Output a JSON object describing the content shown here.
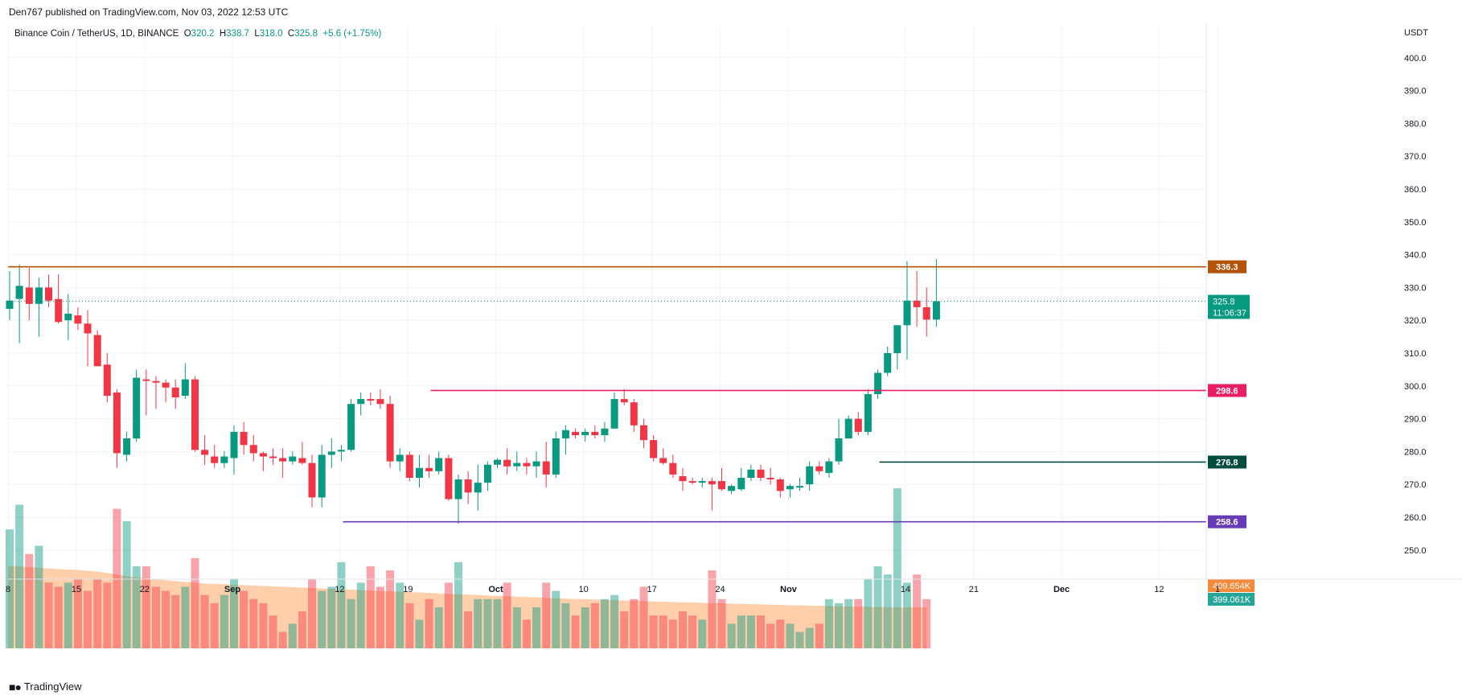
{
  "header": {
    "published_text": "Den767 published on TradingView.com, Nov 03, 2022 12:53 UTC"
  },
  "legend": {
    "symbol": "Binance Coin / TetherUS, 1D, BINANCE",
    "o_label": "O",
    "o_value": "320.2",
    "h_label": "H",
    "h_value": "338.7",
    "l_label": "L",
    "l_value": "318.0",
    "c_label": "C",
    "c_value": "325.8",
    "change": "+5.6 (+1.75%)"
  },
  "footer": {
    "brand": "TradingView"
  },
  "colors": {
    "up": "#089981",
    "down": "#f23645",
    "grid": "#f0f3fa",
    "ma_fill": "#ffcca8",
    "level_resistance": "#b45309",
    "level_mid": "#e91e63",
    "level_support": "#004d40",
    "level_volume": "#673ab7"
  },
  "chart_data": {
    "type": "candlestick",
    "currency": "USDT",
    "ylim": [
      247,
      410
    ],
    "y_ticks": [
      "250.0",
      "260.0",
      "270.0",
      "280.0",
      "290.0",
      "300.0",
      "310.0",
      "320.0",
      "330.0",
      "340.0",
      "350.0",
      "360.0",
      "370.0",
      "380.0",
      "390.0",
      "400.0"
    ],
    "x_ticks": [
      "8",
      "15",
      "22",
      "Sep",
      "12",
      "19",
      "Oct",
      "10",
      "17",
      "24",
      "Nov",
      "14",
      "21",
      "Dec",
      "12",
      "1"
    ],
    "grid": true,
    "candles": [
      {
        "o": 323.5,
        "h": 335,
        "l": 320,
        "c": 326.0
      },
      {
        "o": 326.5,
        "h": 337,
        "l": 313,
        "c": 330.5
      },
      {
        "o": 330.0,
        "h": 336,
        "l": 320,
        "c": 325.0
      },
      {
        "o": 325.0,
        "h": 333,
        "l": 315,
        "c": 330.0
      },
      {
        "o": 330.0,
        "h": 334,
        "l": 324,
        "c": 326.0
      },
      {
        "o": 326.5,
        "h": 334,
        "l": 319,
        "c": 319.5
      },
      {
        "o": 320.0,
        "h": 328,
        "l": 314,
        "c": 322.0
      },
      {
        "o": 321.5,
        "h": 324,
        "l": 317,
        "c": 319.0
      },
      {
        "o": 319.0,
        "h": 323,
        "l": 306,
        "c": 316.0
      },
      {
        "o": 315.5,
        "h": 317,
        "l": 306,
        "c": 306.0
      },
      {
        "o": 306.5,
        "h": 310,
        "l": 295,
        "c": 297.0
      },
      {
        "o": 298.0,
        "h": 299,
        "l": 275,
        "c": 279.5
      },
      {
        "o": 279.0,
        "h": 286,
        "l": 277,
        "c": 284.0
      },
      {
        "o": 284.0,
        "h": 305,
        "l": 283,
        "c": 302.5
      },
      {
        "o": 302.0,
        "h": 305,
        "l": 291,
        "c": 301.5
      },
      {
        "o": 301.5,
        "h": 303,
        "l": 293,
        "c": 301.0
      },
      {
        "o": 301.0,
        "h": 302,
        "l": 295,
        "c": 299.5
      },
      {
        "o": 299.5,
        "h": 302,
        "l": 293,
        "c": 296.5
      },
      {
        "o": 297.0,
        "h": 307,
        "l": 296,
        "c": 302.0
      },
      {
        "o": 302.0,
        "h": 303,
        "l": 280,
        "c": 280.5
      },
      {
        "o": 280.5,
        "h": 285,
        "l": 276,
        "c": 279.0
      },
      {
        "o": 278.5,
        "h": 282,
        "l": 275,
        "c": 276.5
      },
      {
        "o": 276.5,
        "h": 280,
        "l": 275,
        "c": 278.5
      },
      {
        "o": 278.0,
        "h": 288,
        "l": 273,
        "c": 286.0
      },
      {
        "o": 286.0,
        "h": 289,
        "l": 279,
        "c": 282.0
      },
      {
        "o": 282.0,
        "h": 285,
        "l": 277,
        "c": 279.5
      },
      {
        "o": 279.5,
        "h": 280,
        "l": 274,
        "c": 278.5
      },
      {
        "o": 278.5,
        "h": 281,
        "l": 276,
        "c": 278.0
      },
      {
        "o": 278.0,
        "h": 281,
        "l": 272,
        "c": 277.0
      },
      {
        "o": 277.0,
        "h": 280,
        "l": 276,
        "c": 278.5
      },
      {
        "o": 278.0,
        "h": 283,
        "l": 276,
        "c": 276.5
      },
      {
        "o": 276.5,
        "h": 279,
        "l": 263,
        "c": 266.0
      },
      {
        "o": 266.0,
        "h": 282,
        "l": 263,
        "c": 279.0
      },
      {
        "o": 279.0,
        "h": 284,
        "l": 275,
        "c": 280.0
      },
      {
        "o": 280.0,
        "h": 282,
        "l": 277,
        "c": 280.5
      },
      {
        "o": 280.5,
        "h": 296,
        "l": 280,
        "c": 294.5
      },
      {
        "o": 294.5,
        "h": 298,
        "l": 291,
        "c": 296.0
      },
      {
        "o": 296.0,
        "h": 298,
        "l": 294,
        "c": 295.5
      },
      {
        "o": 296.0,
        "h": 299,
        "l": 293,
        "c": 294.5
      },
      {
        "o": 294.5,
        "h": 297,
        "l": 275,
        "c": 277.0
      },
      {
        "o": 277.0,
        "h": 281,
        "l": 274,
        "c": 279.0
      },
      {
        "o": 279.0,
        "h": 280,
        "l": 271,
        "c": 272.0
      },
      {
        "o": 272.0,
        "h": 279,
        "l": 269,
        "c": 275.0
      },
      {
        "o": 275.0,
        "h": 279,
        "l": 272,
        "c": 274.0
      },
      {
        "o": 274.0,
        "h": 280,
        "l": 273,
        "c": 278.0
      },
      {
        "o": 278.0,
        "h": 279,
        "l": 265,
        "c": 265.5
      },
      {
        "o": 265.5,
        "h": 273,
        "l": 258,
        "c": 271.5
      },
      {
        "o": 271.5,
        "h": 274,
        "l": 264,
        "c": 267.5
      },
      {
        "o": 267.5,
        "h": 276,
        "l": 262,
        "c": 270.5
      },
      {
        "o": 270.5,
        "h": 277,
        "l": 268,
        "c": 276.0
      },
      {
        "o": 276.0,
        "h": 278,
        "l": 275,
        "c": 277.5
      },
      {
        "o": 277.5,
        "h": 281,
        "l": 273,
        "c": 275.5
      },
      {
        "o": 275.5,
        "h": 280,
        "l": 274,
        "c": 276.5
      },
      {
        "o": 276.5,
        "h": 278,
        "l": 273,
        "c": 275.5
      },
      {
        "o": 275.5,
        "h": 280,
        "l": 272,
        "c": 277.0
      },
      {
        "o": 277.0,
        "h": 283,
        "l": 269,
        "c": 273.0
      },
      {
        "o": 273.0,
        "h": 286,
        "l": 272,
        "c": 284.0
      },
      {
        "o": 284.0,
        "h": 288,
        "l": 279,
        "c": 286.5
      },
      {
        "o": 286.0,
        "h": 287,
        "l": 284,
        "c": 285.0
      },
      {
        "o": 285.0,
        "h": 287,
        "l": 283,
        "c": 286.0
      },
      {
        "o": 286.0,
        "h": 288,
        "l": 284,
        "c": 285.0
      },
      {
        "o": 285.0,
        "h": 289,
        "l": 283,
        "c": 287.0
      },
      {
        "o": 287.0,
        "h": 298,
        "l": 287,
        "c": 296.0
      },
      {
        "o": 296.0,
        "h": 299,
        "l": 294,
        "c": 295.0
      },
      {
        "o": 295.0,
        "h": 296,
        "l": 286,
        "c": 288.0
      },
      {
        "o": 288.0,
        "h": 290,
        "l": 281,
        "c": 283.5
      },
      {
        "o": 283.5,
        "h": 285,
        "l": 277,
        "c": 278.0
      },
      {
        "o": 278.0,
        "h": 281,
        "l": 276,
        "c": 276.5
      },
      {
        "o": 276.5,
        "h": 279,
        "l": 272,
        "c": 273.0
      },
      {
        "o": 272.5,
        "h": 275,
        "l": 268,
        "c": 271.0
      },
      {
        "o": 271.0,
        "h": 272,
        "l": 270,
        "c": 270.5
      },
      {
        "o": 270.5,
        "h": 272,
        "l": 269,
        "c": 271.0
      },
      {
        "o": 271.0,
        "h": 272,
        "l": 262,
        "c": 270.0
      },
      {
        "o": 271.0,
        "h": 275,
        "l": 268,
        "c": 268.5
      },
      {
        "o": 268.0,
        "h": 270,
        "l": 267,
        "c": 269.5
      },
      {
        "o": 268.5,
        "h": 275,
        "l": 268,
        "c": 272.0
      },
      {
        "o": 272.0,
        "h": 276,
        "l": 271,
        "c": 274.5
      },
      {
        "o": 274.5,
        "h": 276,
        "l": 271,
        "c": 272.0
      },
      {
        "o": 272.0,
        "h": 275,
        "l": 270,
        "c": 271.5
      },
      {
        "o": 271.5,
        "h": 272,
        "l": 266,
        "c": 268.0
      },
      {
        "o": 268.5,
        "h": 270,
        "l": 266,
        "c": 269.5
      },
      {
        "o": 269.0,
        "h": 272,
        "l": 268,
        "c": 269.5
      },
      {
        "o": 270.0,
        "h": 277,
        "l": 268,
        "c": 275.5
      },
      {
        "o": 275.5,
        "h": 277,
        "l": 273,
        "c": 274.0
      },
      {
        "o": 273.5,
        "h": 278,
        "l": 272,
        "c": 277.0
      },
      {
        "o": 277.0,
        "h": 290,
        "l": 276,
        "c": 284.0
      },
      {
        "o": 284.0,
        "h": 291,
        "l": 284,
        "c": 290.0
      },
      {
        "o": 290.0,
        "h": 292,
        "l": 285,
        "c": 286.0
      },
      {
        "o": 286.0,
        "h": 299,
        "l": 285,
        "c": 297.5
      },
      {
        "o": 297.5,
        "h": 305,
        "l": 296,
        "c": 304.0
      },
      {
        "o": 304.0,
        "h": 312,
        "l": 303,
        "c": 310.0
      },
      {
        "o": 310.0,
        "h": 318,
        "l": 305,
        "c": 318.5
      },
      {
        "o": 318.5,
        "h": 338,
        "l": 308,
        "c": 326.0
      },
      {
        "o": 326.0,
        "h": 335,
        "l": 318,
        "c": 324.0
      },
      {
        "o": 324.0,
        "h": 330,
        "l": 315,
        "c": 320.2
      },
      {
        "o": 320.2,
        "h": 338.7,
        "l": 318.0,
        "c": 325.8
      }
    ],
    "volumes": [
      {
        "v": 29,
        "ma": 20
      },
      {
        "v": 35,
        "ma": 20
      },
      {
        "v": 23,
        "ma": 19.8
      },
      {
        "v": 25,
        "ma": 19.6
      },
      {
        "v": 16,
        "ma": 19.5
      },
      {
        "v": 15,
        "ma": 19.3
      },
      {
        "v": 16,
        "ma": 19.2
      },
      {
        "v": 17,
        "ma": 19.1
      },
      {
        "v": 14,
        "ma": 18.9
      },
      {
        "v": 17,
        "ma": 18.7
      },
      {
        "v": 16,
        "ma": 18.4
      },
      {
        "v": 34,
        "ma": 18.0
      },
      {
        "v": 31,
        "ma": 17.6
      },
      {
        "v": 20,
        "ma": 17.3
      },
      {
        "v": 20,
        "ma": 17.0
      },
      {
        "v": 15,
        "ma": 16.8
      },
      {
        "v": 14,
        "ma": 16.6
      },
      {
        "v": 13,
        "ma": 16.4
      },
      {
        "v": 15,
        "ma": 16.2
      },
      {
        "v": 22,
        "ma": 16.0
      },
      {
        "v": 13,
        "ma": 15.8
      },
      {
        "v": 11,
        "ma": 15.7
      },
      {
        "v": 13,
        "ma": 15.6
      },
      {
        "v": 17,
        "ma": 15.5
      },
      {
        "v": 14,
        "ma": 15.4
      },
      {
        "v": 12,
        "ma": 15.3
      },
      {
        "v": 11,
        "ma": 15.2
      },
      {
        "v": 8,
        "ma": 15.1
      },
      {
        "v": 4,
        "ma": 15.0
      },
      {
        "v": 6,
        "ma": 14.9
      },
      {
        "v": 9,
        "ma": 14.8
      },
      {
        "v": 17,
        "ma": 14.7
      },
      {
        "v": 14,
        "ma": 14.6
      },
      {
        "v": 15,
        "ma": 14.5
      },
      {
        "v": 21,
        "ma": 14.4
      },
      {
        "v": 12,
        "ma": 14.3
      },
      {
        "v": 16,
        "ma": 14.2
      },
      {
        "v": 20,
        "ma": 14.1
      },
      {
        "v": 15,
        "ma": 14.0
      },
      {
        "v": 19,
        "ma": 13.9
      },
      {
        "v": 16,
        "ma": 13.8
      },
      {
        "v": 11,
        "ma": 13.7
      },
      {
        "v": 7,
        "ma": 13.6
      },
      {
        "v": 12,
        "ma": 13.5
      },
      {
        "v": 10,
        "ma": 13.4
      },
      {
        "v": 16,
        "ma": 13.3
      },
      {
        "v": 21,
        "ma": 13.2
      },
      {
        "v": 9,
        "ma": 13.1
      },
      {
        "v": 12,
        "ma": 13.0
      },
      {
        "v": 12,
        "ma": 12.9
      },
      {
        "v": 12,
        "ma": 12.8
      },
      {
        "v": 16,
        "ma": 12.7
      },
      {
        "v": 10,
        "ma": 12.6
      },
      {
        "v": 7,
        "ma": 12.5
      },
      {
        "v": 10,
        "ma": 12.4
      },
      {
        "v": 16,
        "ma": 12.3
      },
      {
        "v": 14,
        "ma": 12.2
      },
      {
        "v": 11,
        "ma": 12.1
      },
      {
        "v": 8,
        "ma": 12.0
      },
      {
        "v": 10,
        "ma": 12.0
      },
      {
        "v": 11,
        "ma": 11.9
      },
      {
        "v": 12,
        "ma": 11.8
      },
      {
        "v": 13,
        "ma": 11.7
      },
      {
        "v": 9,
        "ma": 11.6
      },
      {
        "v": 12,
        "ma": 11.6
      },
      {
        "v": 15,
        "ma": 11.5
      },
      {
        "v": 8,
        "ma": 11.4
      },
      {
        "v": 8,
        "ma": 11.4
      },
      {
        "v": 7,
        "ma": 11.3
      },
      {
        "v": 9,
        "ma": 11.2
      },
      {
        "v": 8,
        "ma": 11.2
      },
      {
        "v": 7,
        "ma": 11.1
      },
      {
        "v": 19,
        "ma": 11.0
      },
      {
        "v": 12,
        "ma": 11.0
      },
      {
        "v": 6,
        "ma": 10.9
      },
      {
        "v": 8,
        "ma": 10.8
      },
      {
        "v": 8,
        "ma": 10.8
      },
      {
        "v": 8,
        "ma": 10.7
      },
      {
        "v": 6,
        "ma": 10.6
      },
      {
        "v": 7,
        "ma": 10.6
      },
      {
        "v": 6,
        "ma": 10.5
      },
      {
        "v": 4,
        "ma": 10.5
      },
      {
        "v": 5,
        "ma": 10.4
      },
      {
        "v": 6,
        "ma": 10.4
      },
      {
        "v": 12,
        "ma": 10.3
      },
      {
        "v": 11,
        "ma": 10.3
      },
      {
        "v": 12,
        "ma": 10.2
      },
      {
        "v": 12,
        "ma": 10.2
      },
      {
        "v": 17,
        "ma": 10.1
      },
      {
        "v": 20,
        "ma": 10.1
      },
      {
        "v": 18,
        "ma": 10.0
      },
      {
        "v": 39,
        "ma": 10.0
      },
      {
        "v": 16,
        "ma": 10.0
      },
      {
        "v": 18,
        "ma": 10.0
      },
      {
        "v": 12,
        "ma": 10.0
      }
    ],
    "levels": [
      {
        "label": "336.3",
        "value": 336.3,
        "color": "#b45309",
        "from": 0
      },
      {
        "label": "298.6",
        "value": 298.6,
        "color": "#e91e63",
        "from": 43
      },
      {
        "label": "276.8",
        "value": 276.8,
        "color": "#004d40",
        "from": 89
      },
      {
        "label": "258.6",
        "value": 258.6,
        "color": "#673ab7",
        "from": 34
      }
    ],
    "last_price": {
      "label": "325.8",
      "countdown": "11:06:37",
      "value": 325.8
    },
    "volume_labels": [
      {
        "label": "409.654K",
        "color": "#f7893b"
      },
      {
        "label": "399.061K",
        "color": "#26a69a"
      }
    ]
  }
}
